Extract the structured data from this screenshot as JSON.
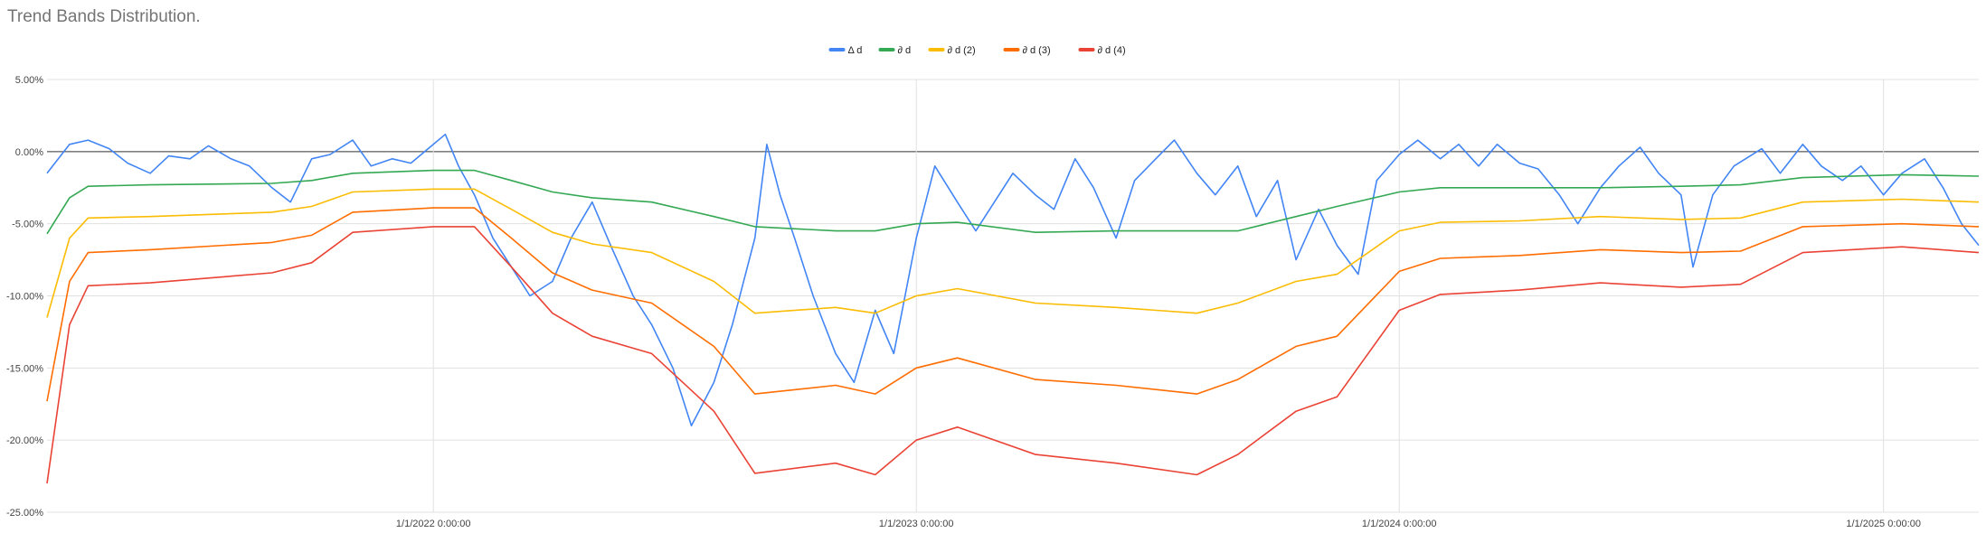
{
  "chart_data": {
    "type": "line",
    "title": "Trend Bands Distribution.",
    "xlabel": "",
    "ylabel": "",
    "x_ticks": [
      "1/1/2022 0:00:00",
      "1/1/2023 0:00:00",
      "1/1/2024 0:00:00",
      "1/1/2025 0:00:00"
    ],
    "y_ticks": [
      "5.00%",
      "0.00%",
      "-5.00%",
      "-10.00%",
      "-15.00%",
      "-20.00%",
      "-25.00%"
    ],
    "ylim": [
      -25,
      5
    ],
    "xlim": [
      "2021-03-15",
      "2025-03-14"
    ],
    "grid": true,
    "legend_position": "top",
    "series": [
      {
        "name": "Δ d",
        "color": "#4285f4",
        "points": [
          [
            "2021-03-15",
            -1.5
          ],
          [
            "2021-04-01",
            0.5
          ],
          [
            "2021-04-15",
            0.8
          ],
          [
            "2021-05-01",
            0.2
          ],
          [
            "2021-05-15",
            -0.8
          ],
          [
            "2021-06-01",
            -1.5
          ],
          [
            "2021-06-15",
            -0.3
          ],
          [
            "2021-07-01",
            -0.5
          ],
          [
            "2021-07-15",
            0.4
          ],
          [
            "2021-08-01",
            -0.5
          ],
          [
            "2021-08-15",
            -1.0
          ],
          [
            "2021-09-01",
            -2.5
          ],
          [
            "2021-09-15",
            -3.5
          ],
          [
            "2021-10-01",
            -0.5
          ],
          [
            "2021-10-15",
            -0.2
          ],
          [
            "2021-11-01",
            0.8
          ],
          [
            "2021-11-15",
            -1.0
          ],
          [
            "2021-12-01",
            -0.5
          ],
          [
            "2021-12-15",
            -0.8
          ],
          [
            "2022-01-01",
            0.5
          ],
          [
            "2022-01-10",
            1.2
          ],
          [
            "2022-01-20",
            -1.0
          ],
          [
            "2022-02-01",
            -3.0
          ],
          [
            "2022-02-15",
            -6.0
          ],
          [
            "2022-03-01",
            -8.0
          ],
          [
            "2022-03-15",
            -10.0
          ],
          [
            "2022-04-01",
            -9.0
          ],
          [
            "2022-04-15",
            -6.0
          ],
          [
            "2022-05-01",
            -3.5
          ],
          [
            "2022-05-15",
            -6.5
          ],
          [
            "2022-06-01",
            -10.0
          ],
          [
            "2022-06-15",
            -12.0
          ],
          [
            "2022-07-01",
            -15.0
          ],
          [
            "2022-07-15",
            -19.0
          ],
          [
            "2022-08-01",
            -16.0
          ],
          [
            "2022-08-15",
            -12.0
          ],
          [
            "2022-09-01",
            -6.0
          ],
          [
            "2022-09-10",
            0.5
          ],
          [
            "2022-09-20",
            -3.0
          ],
          [
            "2022-10-01",
            -6.0
          ],
          [
            "2022-10-15",
            -10.0
          ],
          [
            "2022-11-01",
            -14.0
          ],
          [
            "2022-11-15",
            -16.0
          ],
          [
            "2022-12-01",
            -11.0
          ],
          [
            "2022-12-15",
            -14.0
          ],
          [
            "2023-01-01",
            -6.0
          ],
          [
            "2023-01-15",
            -1.0
          ],
          [
            "2023-02-01",
            -3.5
          ],
          [
            "2023-02-15",
            -5.5
          ],
          [
            "2023-03-01",
            -3.5
          ],
          [
            "2023-03-15",
            -1.5
          ],
          [
            "2023-04-01",
            -3.0
          ],
          [
            "2023-04-15",
            -4.0
          ],
          [
            "2023-05-01",
            -0.5
          ],
          [
            "2023-05-15",
            -2.5
          ],
          [
            "2023-06-01",
            -6.0
          ],
          [
            "2023-06-15",
            -2.0
          ],
          [
            "2023-07-01",
            -0.5
          ],
          [
            "2023-07-15",
            0.8
          ],
          [
            "2023-08-01",
            -1.5
          ],
          [
            "2023-08-15",
            -3.0
          ],
          [
            "2023-09-01",
            -1.0
          ],
          [
            "2023-09-15",
            -4.5
          ],
          [
            "2023-10-01",
            -2.0
          ],
          [
            "2023-10-15",
            -7.5
          ],
          [
            "2023-11-01",
            -4.0
          ],
          [
            "2023-11-15",
            -6.5
          ],
          [
            "2023-12-01",
            -8.5
          ],
          [
            "2023-12-15",
            -2.0
          ],
          [
            "2024-01-01",
            -0.2
          ],
          [
            "2024-01-15",
            0.8
          ],
          [
            "2024-02-01",
            -0.5
          ],
          [
            "2024-02-15",
            0.5
          ],
          [
            "2024-03-01",
            -1.0
          ],
          [
            "2024-03-15",
            0.5
          ],
          [
            "2024-04-01",
            -0.8
          ],
          [
            "2024-04-15",
            -1.2
          ],
          [
            "2024-05-01",
            -3.0
          ],
          [
            "2024-05-15",
            -5.0
          ],
          [
            "2024-06-01",
            -2.5
          ],
          [
            "2024-06-15",
            -1.0
          ],
          [
            "2024-07-01",
            0.3
          ],
          [
            "2024-07-15",
            -1.5
          ],
          [
            "2024-08-01",
            -3.0
          ],
          [
            "2024-08-10",
            -8.0
          ],
          [
            "2024-08-25",
            -3.0
          ],
          [
            "2024-09-10",
            -1.0
          ],
          [
            "2024-10-01",
            0.2
          ],
          [
            "2024-10-15",
            -1.5
          ],
          [
            "2024-11-01",
            0.5
          ],
          [
            "2024-11-15",
            -1.0
          ],
          [
            "2024-12-01",
            -2.0
          ],
          [
            "2024-12-15",
            -1.0
          ],
          [
            "2025-01-01",
            -3.0
          ],
          [
            "2025-01-15",
            -1.5
          ],
          [
            "2025-02-01",
            -0.5
          ],
          [
            "2025-02-15",
            -2.5
          ],
          [
            "2025-03-01",
            -5.0
          ],
          [
            "2025-03-14",
            -6.5
          ]
        ]
      },
      {
        "name": "∂ d",
        "color": "#34a853",
        "points": [
          [
            "2021-03-15",
            -5.7
          ],
          [
            "2021-04-01",
            -3.2
          ],
          [
            "2021-04-15",
            -2.4
          ],
          [
            "2021-06-01",
            -2.3
          ],
          [
            "2021-09-01",
            -2.2
          ],
          [
            "2021-10-01",
            -2.0
          ],
          [
            "2021-11-01",
            -1.5
          ],
          [
            "2022-01-01",
            -1.3
          ],
          [
            "2022-02-01",
            -1.3
          ],
          [
            "2022-03-01",
            -2.0
          ],
          [
            "2022-04-01",
            -2.8
          ],
          [
            "2022-05-01",
            -3.2
          ],
          [
            "2022-06-15",
            -3.5
          ],
          [
            "2022-08-01",
            -4.5
          ],
          [
            "2022-09-01",
            -5.2
          ],
          [
            "2022-11-01",
            -5.5
          ],
          [
            "2022-12-01",
            -5.5
          ],
          [
            "2023-01-01",
            -5.0
          ],
          [
            "2023-02-01",
            -4.9
          ],
          [
            "2023-04-01",
            -5.6
          ],
          [
            "2023-06-01",
            -5.5
          ],
          [
            "2023-08-01",
            -5.5
          ],
          [
            "2023-09-01",
            -5.5
          ],
          [
            "2023-10-15",
            -4.5
          ],
          [
            "2023-11-15",
            -3.8
          ],
          [
            "2024-01-01",
            -2.8
          ],
          [
            "2024-02-01",
            -2.5
          ],
          [
            "2024-04-01",
            -2.5
          ],
          [
            "2024-06-01",
            -2.5
          ],
          [
            "2024-08-01",
            -2.4
          ],
          [
            "2024-09-15",
            -2.3
          ],
          [
            "2024-11-01",
            -1.8
          ],
          [
            "2025-01-15",
            -1.6
          ],
          [
            "2025-03-14",
            -1.7
          ]
        ]
      },
      {
        "name": "∂ d (2)",
        "color": "#fbbc04",
        "points": [
          [
            "2021-03-15",
            -11.5
          ],
          [
            "2021-04-01",
            -6.0
          ],
          [
            "2021-04-15",
            -4.6
          ],
          [
            "2021-06-01",
            -4.5
          ],
          [
            "2021-09-01",
            -4.2
          ],
          [
            "2021-10-01",
            -3.8
          ],
          [
            "2021-11-01",
            -2.8
          ],
          [
            "2022-01-01",
            -2.6
          ],
          [
            "2022-02-01",
            -2.6
          ],
          [
            "2022-03-01",
            -4.0
          ],
          [
            "2022-04-01",
            -5.6
          ],
          [
            "2022-05-01",
            -6.4
          ],
          [
            "2022-06-15",
            -7.0
          ],
          [
            "2022-08-01",
            -9.0
          ],
          [
            "2022-09-01",
            -11.2
          ],
          [
            "2022-11-01",
            -10.8
          ],
          [
            "2022-12-01",
            -11.2
          ],
          [
            "2023-01-01",
            -10.0
          ],
          [
            "2023-02-01",
            -9.5
          ],
          [
            "2023-04-01",
            -10.5
          ],
          [
            "2023-06-01",
            -10.8
          ],
          [
            "2023-08-01",
            -11.2
          ],
          [
            "2023-09-01",
            -10.5
          ],
          [
            "2023-10-15",
            -9.0
          ],
          [
            "2023-11-15",
            -8.5
          ],
          [
            "2024-01-01",
            -5.5
          ],
          [
            "2024-02-01",
            -4.9
          ],
          [
            "2024-04-01",
            -4.8
          ],
          [
            "2024-06-01",
            -4.5
          ],
          [
            "2024-08-01",
            -4.7
          ],
          [
            "2024-09-15",
            -4.6
          ],
          [
            "2024-11-01",
            -3.5
          ],
          [
            "2025-01-15",
            -3.3
          ],
          [
            "2025-03-14",
            -3.5
          ]
        ]
      },
      {
        "name": "∂ d (3)",
        "color": "#ff6d01",
        "points": [
          [
            "2021-03-15",
            -17.3
          ],
          [
            "2021-04-01",
            -9.0
          ],
          [
            "2021-04-15",
            -7.0
          ],
          [
            "2021-06-01",
            -6.8
          ],
          [
            "2021-09-01",
            -6.3
          ],
          [
            "2021-10-01",
            -5.8
          ],
          [
            "2021-11-01",
            -4.2
          ],
          [
            "2022-01-01",
            -3.9
          ],
          [
            "2022-02-01",
            -3.9
          ],
          [
            "2022-03-01",
            -6.0
          ],
          [
            "2022-04-01",
            -8.4
          ],
          [
            "2022-05-01",
            -9.6
          ],
          [
            "2022-06-15",
            -10.5
          ],
          [
            "2022-08-01",
            -13.5
          ],
          [
            "2022-09-01",
            -16.8
          ],
          [
            "2022-11-01",
            -16.2
          ],
          [
            "2022-12-01",
            -16.8
          ],
          [
            "2023-01-01",
            -15.0
          ],
          [
            "2023-02-01",
            -14.3
          ],
          [
            "2023-04-01",
            -15.8
          ],
          [
            "2023-06-01",
            -16.2
          ],
          [
            "2023-08-01",
            -16.8
          ],
          [
            "2023-09-01",
            -15.8
          ],
          [
            "2023-10-15",
            -13.5
          ],
          [
            "2023-11-15",
            -12.8
          ],
          [
            "2024-01-01",
            -8.3
          ],
          [
            "2024-02-01",
            -7.4
          ],
          [
            "2024-04-01",
            -7.2
          ],
          [
            "2024-06-01",
            -6.8
          ],
          [
            "2024-08-01",
            -7.0
          ],
          [
            "2024-09-15",
            -6.9
          ],
          [
            "2024-11-01",
            -5.2
          ],
          [
            "2025-01-15",
            -5.0
          ],
          [
            "2025-03-14",
            -5.2
          ]
        ]
      },
      {
        "name": "∂ d (4)",
        "color": "#ea4335",
        "points": [
          [
            "2021-03-15",
            -23.0
          ],
          [
            "2021-04-01",
            -12.0
          ],
          [
            "2021-04-15",
            -9.3
          ],
          [
            "2021-06-01",
            -9.1
          ],
          [
            "2021-09-01",
            -8.4
          ],
          [
            "2021-10-01",
            -7.7
          ],
          [
            "2021-11-01",
            -5.6
          ],
          [
            "2022-01-01",
            -5.2
          ],
          [
            "2022-02-01",
            -5.2
          ],
          [
            "2022-03-01",
            -8.0
          ],
          [
            "2022-04-01",
            -11.2
          ],
          [
            "2022-05-01",
            -12.8
          ],
          [
            "2022-06-15",
            -14.0
          ],
          [
            "2022-08-01",
            -18.0
          ],
          [
            "2022-09-01",
            -22.3
          ],
          [
            "2022-11-01",
            -21.6
          ],
          [
            "2022-12-01",
            -22.4
          ],
          [
            "2023-01-01",
            -20.0
          ],
          [
            "2023-02-01",
            -19.1
          ],
          [
            "2023-04-01",
            -21.0
          ],
          [
            "2023-06-01",
            -21.6
          ],
          [
            "2023-08-01",
            -22.4
          ],
          [
            "2023-09-01",
            -21.0
          ],
          [
            "2023-10-15",
            -18.0
          ],
          [
            "2023-11-15",
            -17.0
          ],
          [
            "2024-01-01",
            -11.0
          ],
          [
            "2024-02-01",
            -9.9
          ],
          [
            "2024-04-01",
            -9.6
          ],
          [
            "2024-06-01",
            -9.1
          ],
          [
            "2024-08-01",
            -9.4
          ],
          [
            "2024-09-15",
            -9.2
          ],
          [
            "2024-11-01",
            -7.0
          ],
          [
            "2025-01-15",
            -6.6
          ],
          [
            "2025-03-14",
            -7.0
          ]
        ]
      }
    ]
  }
}
